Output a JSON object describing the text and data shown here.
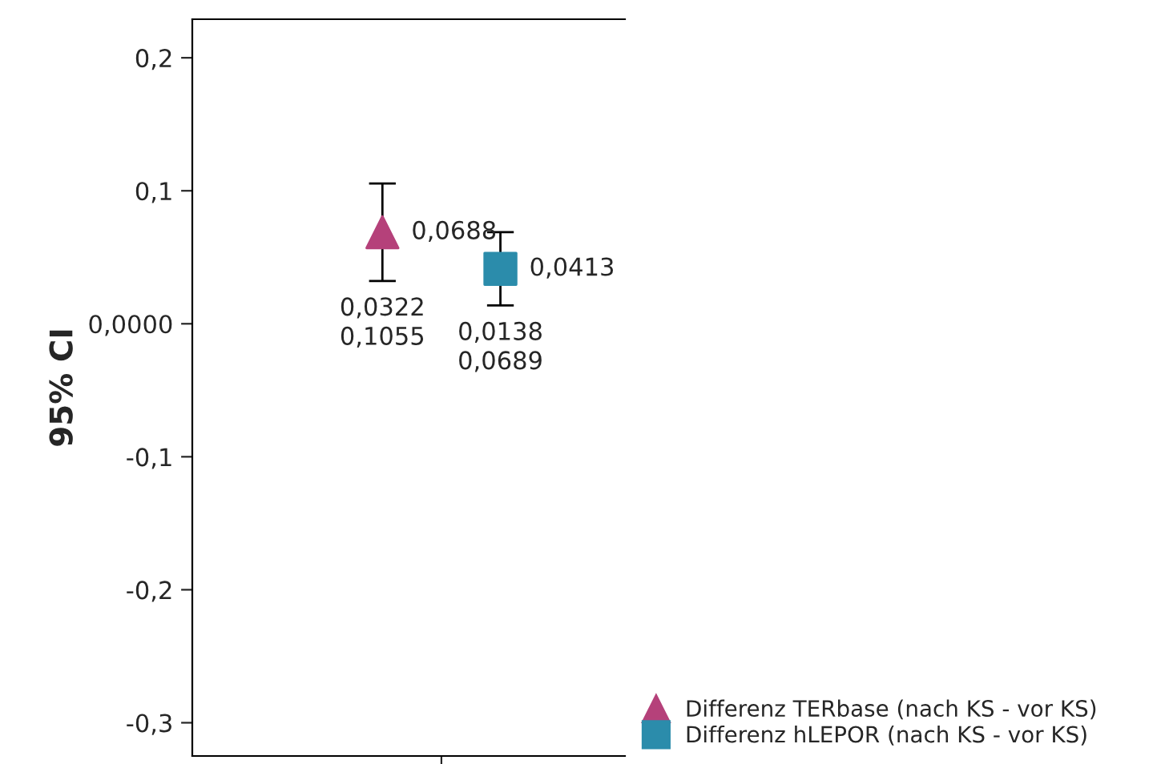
{
  "chart_data": {
    "type": "scatter",
    "ylabel": "95% CI",
    "categories": [
      null
    ],
    "series": [
      {
        "name": "Differenz TERbase (nach KS - vor KS)",
        "color": "#b5417a",
        "marker": "triangle",
        "values": [
          0.0688
        ],
        "errors": [
          [
            0.0322,
            0.1055
          ]
        ],
        "value_labels": [
          "0,0688"
        ]
      },
      {
        "name": "Differenz hLEPOR (nach KS - vor KS)",
        "color": "#2b8cab",
        "marker": "square",
        "values": [
          0.0413
        ],
        "errors": [
          [
            0.0138,
            0.0689
          ]
        ],
        "value_labels": [
          "0,0413"
        ]
      }
    ],
    "annotations": [
      "0,0322",
      "0,1055",
      "0,0138",
      "0,0689"
    ],
    "ylim": [
      -0.325,
      0.229
    ],
    "yticks": [
      {
        "value": 0.2,
        "label": "0,2"
      },
      {
        "value": 0.1,
        "label": "0,1"
      },
      {
        "value": 0,
        "label": "0,0000"
      },
      {
        "value": -0.1,
        "label": "-0,1"
      },
      {
        "value": -0.2,
        "label": "-0,2"
      },
      {
        "value": -0.3,
        "label": "-0,3"
      }
    ],
    "grid": false,
    "legend": "bottom right"
  }
}
